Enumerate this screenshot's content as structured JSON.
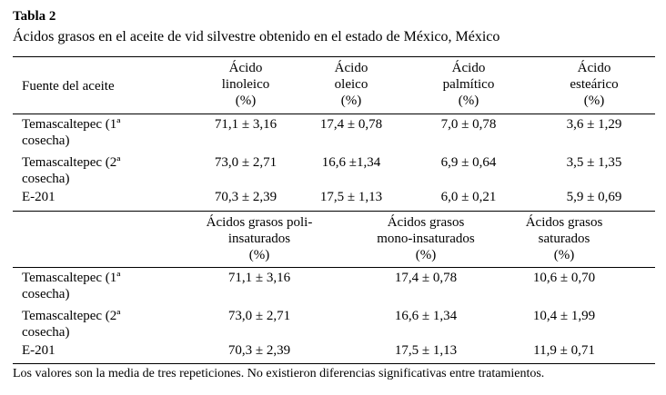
{
  "table": {
    "label": "Tabla 2",
    "caption": "Ácidos grasos en el aceite de vid silvestre obtenido en el estado de México, México",
    "section1": {
      "header_source": "Fuente del aceite",
      "headers": [
        [
          "Ácido",
          "linoleico",
          "(%)"
        ],
        [
          "Ácido",
          "oleico",
          "(%)"
        ],
        [
          "Ácido",
          "palmítico",
          "(%)"
        ],
        [
          "Ácido",
          "esteárico",
          "(%)"
        ]
      ],
      "rows": [
        {
          "source": [
            "Temascaltepec (1ª",
            "cosecha)"
          ],
          "values": [
            "71,1 ± 3,16",
            "17,4 ± 0,78",
            "7,0 ± 0,78",
            "3,6 ± 1,29"
          ]
        },
        {
          "source": [
            "Temascaltepec (2ª",
            "cosecha)"
          ],
          "values": [
            "73,0 ± 2,71",
            "16,6 ±1,34",
            "6,9 ± 0,64",
            "3,5 ± 1,35"
          ]
        },
        {
          "source": [
            "E-201"
          ],
          "values": [
            "70,3 ± 2,39",
            "17,5 ± 1,13",
            "6,0 ± 0,21",
            "5,9 ± 0,69"
          ]
        }
      ]
    },
    "section2": {
      "headers": [
        [
          "Ácidos grasos poli-",
          "insaturados",
          "(%)"
        ],
        [
          "Ácidos grasos",
          "mono-insaturados",
          "(%)"
        ],
        [
          "Ácidos grasos",
          "saturados",
          "(%)"
        ]
      ],
      "rows": [
        {
          "source": [
            "Temascaltepec (1ª",
            "cosecha)"
          ],
          "values": [
            "71,1 ± 3,16",
            "17,4 ± 0,78",
            "10,6 ± 0,70"
          ]
        },
        {
          "source": [
            "Temascaltepec (2ª",
            "cosecha)"
          ],
          "values": [
            "73,0 ± 2,71",
            "16,6 ± 1,34",
            "10,4 ± 1,99"
          ]
        },
        {
          "source": [
            "E-201"
          ],
          "values": [
            "70,3 ± 2,39",
            "17,5 ± 1,13",
            "11,9 ± 0,71"
          ]
        }
      ]
    },
    "footnote": "Los valores son la media de tres repeticiones. No existieron diferencias significativas entre tratamientos."
  }
}
